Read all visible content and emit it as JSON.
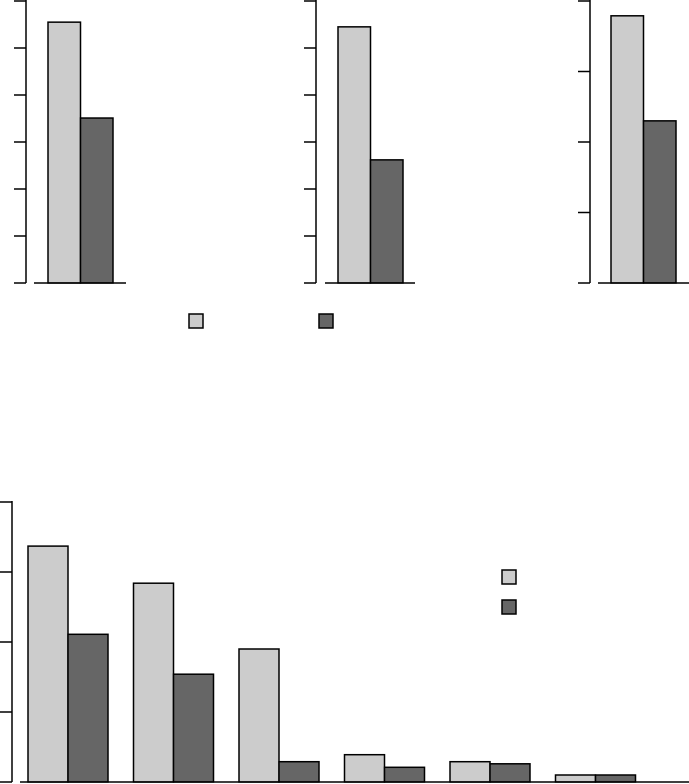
{
  "chart_data": [
    {
      "type": "bar",
      "categories": [
        null
      ],
      "series": [
        {
          "color": "#cccccc",
          "values": [
            5.55
          ]
        },
        {
          "color": "#666666",
          "values": [
            3.51
          ]
        }
      ],
      "ylim": [
        0,
        6
      ],
      "yticks": [
        0,
        1,
        2,
        3,
        4,
        5,
        6
      ],
      "legend": "bottom"
    },
    {
      "type": "bar",
      "categories": [
        null
      ],
      "series": [
        {
          "color": "#cccccc",
          "values": [
            5.45
          ]
        },
        {
          "color": "#666666",
          "values": [
            2.62
          ]
        }
      ],
      "ylim": [
        0,
        6
      ],
      "yticks": [
        0,
        1,
        2,
        3,
        4,
        5,
        6
      ]
    },
    {
      "type": "bar",
      "categories": [
        null
      ],
      "series": [
        {
          "color": "#cccccc",
          "values": [
            3.79
          ]
        },
        {
          "color": "#666666",
          "values": [
            2.3
          ]
        }
      ],
      "ylim": [
        0,
        4
      ],
      "yticks": [
        0,
        1,
        2,
        3,
        4
      ]
    },
    {
      "type": "bar",
      "categories": [
        null,
        null,
        null,
        null,
        null,
        null
      ],
      "series": [
        {
          "color": "#cccccc",
          "values": [
            3.37,
            2.84,
            1.9,
            0.39,
            0.29,
            0.1
          ]
        },
        {
          "color": "#666666",
          "values": [
            2.11,
            1.54,
            0.29,
            0.21,
            0.26,
            0.1
          ]
        }
      ],
      "ylim": [
        0,
        4
      ],
      "yticks": [
        0,
        1,
        2,
        3,
        4
      ],
      "legend": "upper right"
    }
  ]
}
